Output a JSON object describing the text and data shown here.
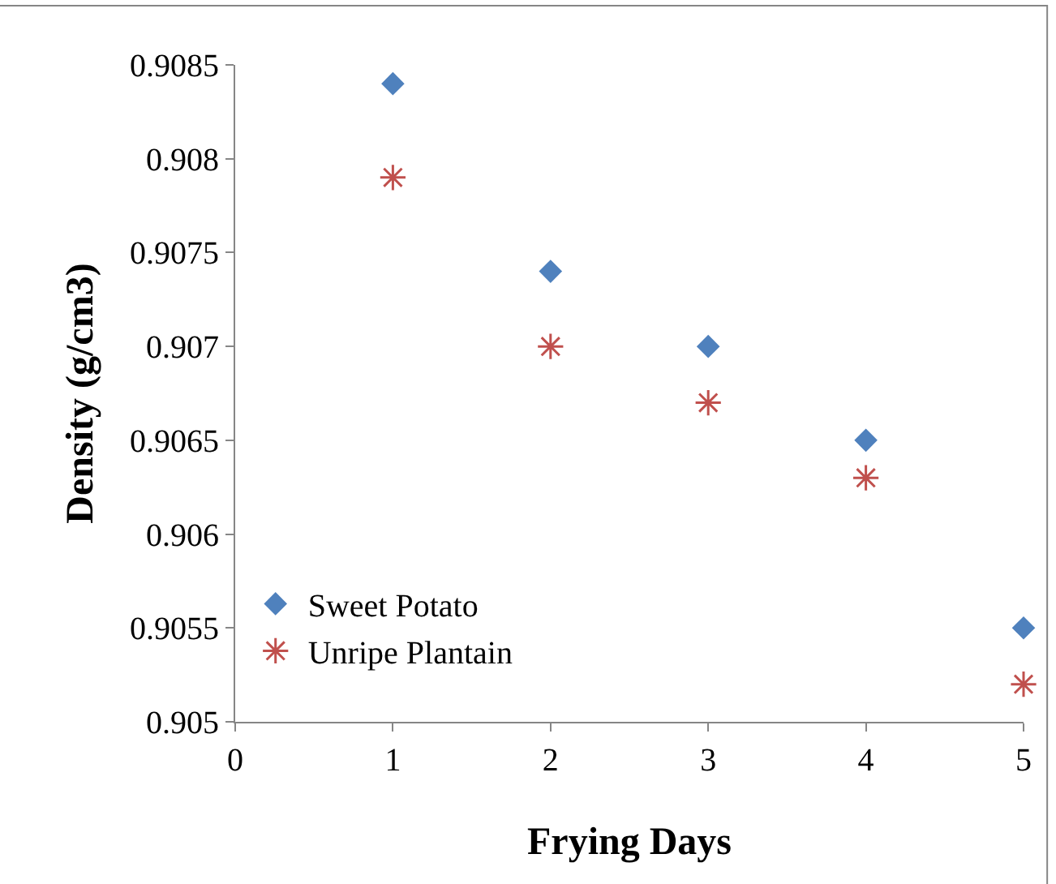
{
  "chart_data": {
    "type": "scatter",
    "xlabel": "Frying Days",
    "ylabel": "Density (g/cm3)",
    "x": [
      1,
      2,
      3,
      4,
      5
    ],
    "series": [
      {
        "name": "Sweet Potato",
        "color": "#4f81bd",
        "marker": "diamond",
        "values": [
          0.9084,
          0.9074,
          0.907,
          0.9065,
          0.9055
        ]
      },
      {
        "name": "Unripe Plantain",
        "color": "#c0504d",
        "marker": "cross",
        "values": [
          0.9079,
          0.907,
          0.9067,
          0.9063,
          0.9052
        ]
      }
    ],
    "xlim": [
      0,
      5
    ],
    "xticks": [
      0,
      1,
      2,
      3,
      4,
      5
    ],
    "ylim": [
      0.905,
      0.9085
    ],
    "yticks": [
      0.905,
      0.9055,
      0.906,
      0.9065,
      0.907,
      0.9075,
      0.908,
      0.9085
    ],
    "legend": "bottom left"
  }
}
